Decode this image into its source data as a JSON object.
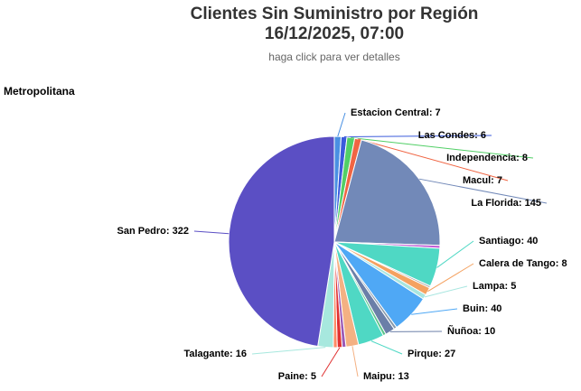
{
  "chart_data": {
    "type": "pie",
    "title": "Clientes Sin Suministro por Región",
    "title_line2": "16/12/2025, 07:00",
    "subtitle": "haga click para ver detalles",
    "region": "Metropolitana",
    "categories": [
      "Estacion Central",
      "Las Condes",
      "Independencia",
      "Macul",
      "La Florida",
      null,
      "Santiago",
      null,
      "Calera de Tango",
      "Lampa",
      "Buin",
      null,
      "Ñuñoa",
      null,
      "Pirque",
      "Maipu",
      null,
      "Paine",
      null,
      "Talagante",
      "San Pedro"
    ],
    "values": [
      7,
      6,
      8,
      7,
      145,
      3,
      40,
      2,
      8,
      5,
      40,
      3,
      10,
      3,
      27,
      13,
      4,
      5,
      4,
      16,
      322
    ],
    "colors": [
      "#4a90e2",
      "#3b5bdb",
      "#51cf66",
      "#f06543",
      "#7289b8",
      "#c05fd6",
      "#4fd8c4",
      "#aaaaaa",
      "#f4a261",
      "#a8e6e0",
      "#4fa8f5",
      "#8899aa",
      "#6b7fa8",
      "#5cc48a",
      "#4fd8c4",
      "#f4b183",
      "#9b59b6",
      "#e03131",
      "#ff8a65",
      "#a7e8de",
      "#5b4fc4"
    ]
  }
}
